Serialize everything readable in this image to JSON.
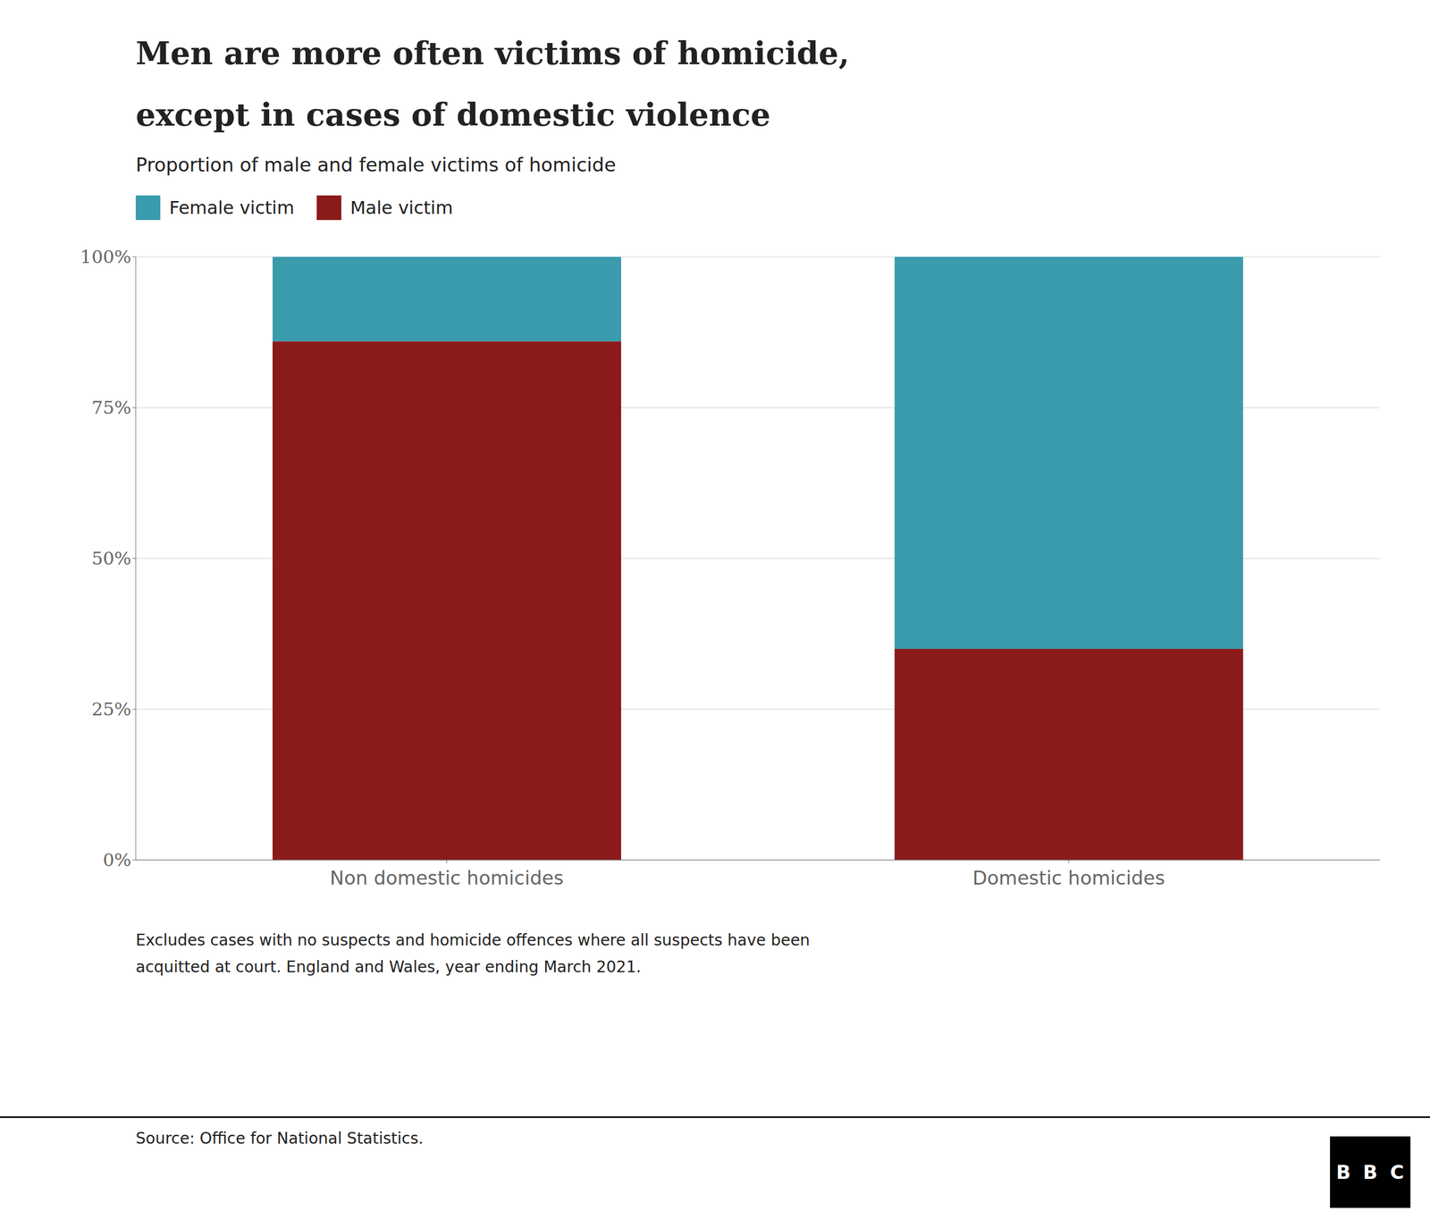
{
  "chart_data": {
    "type": "bar",
    "title": "Men are more often victims of homicide,\nexcept in cases of domestic violence",
    "subtitle": "Proportion of male and female victims of homicide",
    "categories": [
      "Non domestic homicides",
      "Domestic homicides"
    ],
    "series": [
      {
        "name": "Male victim",
        "color": "#8B1A1A",
        "values": [
          0.86,
          0.35
        ]
      },
      {
        "name": "Female victim",
        "color": "#3A9BAD",
        "values": [
          0.14,
          0.65
        ]
      }
    ],
    "stacked": true,
    "ylim": [
      0,
      1
    ],
    "yticks": [
      {
        "value": 0,
        "label": "0%"
      },
      {
        "value": 0.25,
        "label": "25%"
      },
      {
        "value": 0.5,
        "label": "50%"
      },
      {
        "value": 0.75,
        "label": "75%"
      },
      {
        "value": 1.0,
        "label": "100%"
      }
    ],
    "grid": true,
    "legend": "top left",
    "footnote": "Excludes cases with no suspects and homicide offences where all suspects have been\nacquitted at court. England and Wales, year ending March 2021.",
    "source": "Source: Office for National Statistics.",
    "logo": "BBC"
  }
}
